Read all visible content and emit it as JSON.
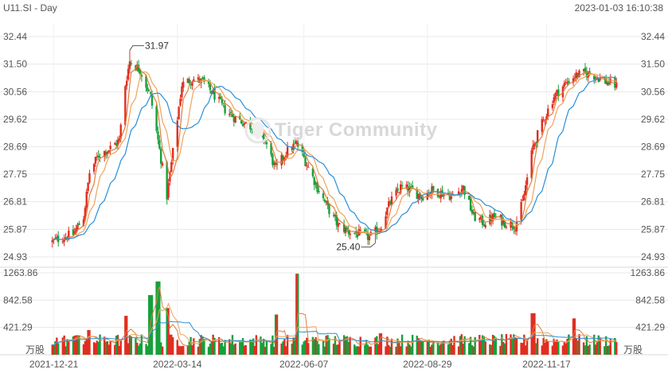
{
  "header": {
    "symbol": "U11.SI - Day",
    "timestamp": "2023-01-03 16:10:38"
  },
  "watermark": {
    "text": "Tiger Community"
  },
  "colors": {
    "up": "#e02e20",
    "down": "#17a03b",
    "ma_fast": "#e07c3c",
    "ma_mid": "#f0a35a",
    "ma_slow": "#2a8fd8",
    "grid": "#e8e8e8"
  },
  "chart_data": [
    {
      "type": "candlestick",
      "y_ticks": [
        "32.44",
        "31.50",
        "30.56",
        "29.62",
        "28.69",
        "27.75",
        "26.81",
        "25.87",
        "24.93"
      ],
      "ylim": [
        24.93,
        32.44
      ],
      "x_ticks": [
        "2021-12-21",
        "2022-03-14",
        "2022-06-07",
        "2022-08-29",
        "2022-11-17"
      ],
      "annotations": [
        {
          "label": "31.97",
          "value": 31.97,
          "date": "2022-02-10"
        },
        {
          "label": "25.40",
          "value": 25.4,
          "date": "2022-07-25"
        }
      ],
      "close_path": [
        [
          "2021-12-20",
          25.45
        ],
        [
          "2021-12-27",
          25.6
        ],
        [
          "2022-01-03",
          25.7
        ],
        [
          "2022-01-10",
          26.3
        ],
        [
          "2022-01-14",
          27.8
        ],
        [
          "2022-01-20",
          28.4
        ],
        [
          "2022-01-27",
          28.6
        ],
        [
          "2022-02-03",
          28.9
        ],
        [
          "2022-02-07",
          30.8
        ],
        [
          "2022-02-10",
          31.6
        ],
        [
          "2022-02-17",
          31.3
        ],
        [
          "2022-02-24",
          30.4
        ],
        [
          "2022-03-01",
          28.9
        ],
        [
          "2022-03-07",
          27.0
        ],
        [
          "2022-03-11",
          28.5
        ],
        [
          "2022-03-17",
          30.8
        ],
        [
          "2022-03-24",
          31.0
        ],
        [
          "2022-03-31",
          30.9
        ],
        [
          "2022-04-07",
          30.5
        ],
        [
          "2022-04-14",
          30.0
        ],
        [
          "2022-04-21",
          29.7
        ],
        [
          "2022-04-28",
          29.5
        ],
        [
          "2022-05-05",
          29.3
        ],
        [
          "2022-05-12",
          28.9
        ],
        [
          "2022-05-19",
          27.9
        ],
        [
          "2022-05-26",
          28.5
        ],
        [
          "2022-06-02",
          28.8
        ],
        [
          "2022-06-09",
          28.1
        ],
        [
          "2022-06-16",
          27.3
        ],
        [
          "2022-06-23",
          26.6
        ],
        [
          "2022-06-30",
          26.0
        ],
        [
          "2022-07-07",
          25.8
        ],
        [
          "2022-07-14",
          25.7
        ],
        [
          "2022-07-21",
          25.6
        ],
        [
          "2022-07-28",
          25.9
        ],
        [
          "2022-08-04",
          26.8
        ],
        [
          "2022-08-11",
          27.3
        ],
        [
          "2022-08-18",
          27.2
        ],
        [
          "2022-08-25",
          27.0
        ],
        [
          "2022-09-01",
          27.2
        ],
        [
          "2022-09-08",
          27.1
        ],
        [
          "2022-09-15",
          27.0
        ],
        [
          "2022-09-22",
          27.3
        ],
        [
          "2022-09-29",
          26.3
        ],
        [
          "2022-10-06",
          26.1
        ],
        [
          "2022-10-13",
          26.3
        ],
        [
          "2022-10-20",
          26.1
        ],
        [
          "2022-10-27",
          26.0
        ],
        [
          "2022-11-01",
          26.8
        ],
        [
          "2022-11-08",
          28.7
        ],
        [
          "2022-11-15",
          29.6
        ],
        [
          "2022-11-22",
          30.4
        ],
        [
          "2022-11-29",
          30.8
        ],
        [
          "2022-12-06",
          31.1
        ],
        [
          "2022-12-13",
          31.2
        ],
        [
          "2022-12-20",
          31.1
        ],
        [
          "2022-12-27",
          30.9
        ],
        [
          "2023-01-03",
          30.75
        ]
      ]
    },
    {
      "type": "bar",
      "y_ticks": [
        "1263.86",
        "842.58",
        "421.29"
      ],
      "ylim": [
        0,
        1263.86
      ],
      "unit": "万股",
      "peaks": [
        [
          "2022-01-06",
          300
        ],
        [
          "2022-01-14",
          380
        ],
        [
          "2022-02-07",
          600
        ],
        [
          "2022-02-24",
          920
        ],
        [
          "2022-03-01",
          1130
        ],
        [
          "2022-03-07",
          720
        ],
        [
          "2022-05-20",
          620
        ],
        [
          "2022-06-03",
          1250
        ],
        [
          "2022-07-29",
          330
        ],
        [
          "2022-11-08",
          640
        ],
        [
          "2022-12-05",
          560
        ]
      ]
    }
  ]
}
